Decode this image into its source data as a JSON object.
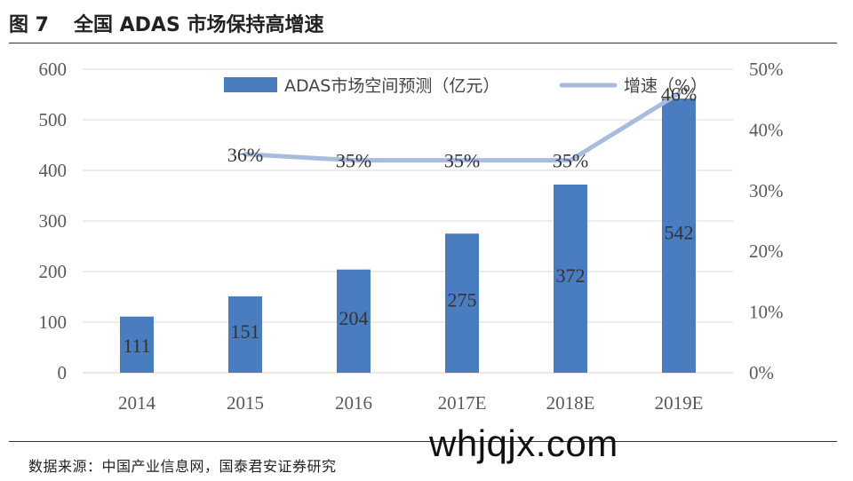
{
  "header": {
    "figure_label": "图 7",
    "title": "全国 ADAS 市场保持高增速"
  },
  "source": "数据来源：中国产业信息网，国泰君安证券研究",
  "watermark": "whjqjx.com",
  "colors": {
    "bar": "#4a7cc0",
    "line": "#a9bce0",
    "grid": "#d9d9d9",
    "axis_text": "#595959"
  },
  "chart_data": {
    "type": "bar",
    "categories": [
      "2014",
      "2015",
      "2016",
      "2017E",
      "2018E",
      "2019E"
    ],
    "series": [
      {
        "name": "ADAS市场空间预测（亿元）",
        "type": "bar",
        "axis": "left",
        "values": [
          111,
          151,
          204,
          275,
          372,
          542
        ],
        "labels": [
          "111",
          "151",
          "204",
          "275",
          "372",
          "542"
        ]
      },
      {
        "name": "增速（%）",
        "type": "line",
        "axis": "right",
        "values": [
          null,
          36,
          35,
          35,
          35,
          46
        ],
        "labels": [
          "",
          "36%",
          "35%",
          "35%",
          "35%",
          "46%"
        ]
      }
    ],
    "y_left": {
      "lim": [
        0,
        600
      ],
      "ticks": [
        "0",
        "100",
        "200",
        "300",
        "400",
        "500",
        "600"
      ]
    },
    "y_right": {
      "lim": [
        0,
        50
      ],
      "ticks": [
        "0%",
        "10%",
        "20%",
        "30%",
        "40%",
        "50%"
      ]
    },
    "grid": true,
    "legend_position": "top-right"
  }
}
